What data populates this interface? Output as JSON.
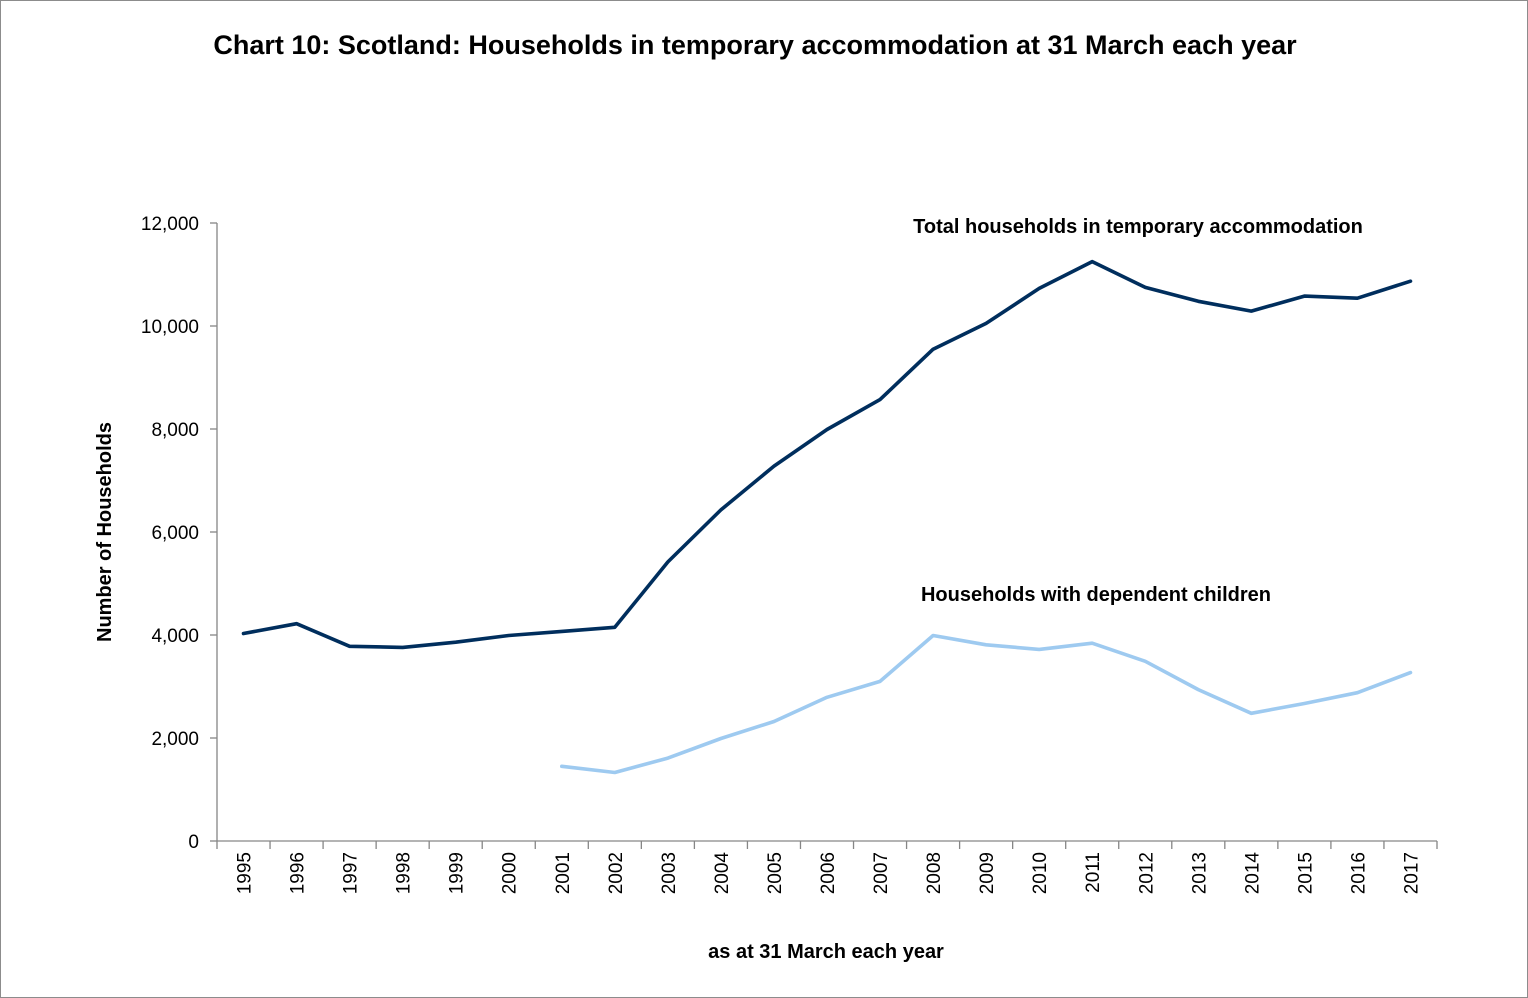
{
  "chart_data": {
    "type": "line",
    "title": "Chart 10: Scotland: Households in temporary accommodation at 31 March each year",
    "xlabel": "as at 31 March each year",
    "ylabel": "Number of Households",
    "ylim": [
      0,
      12000
    ],
    "yticks": [
      "0",
      "2,000",
      "4,000",
      "6,000",
      "8,000",
      "10,000",
      "12,000"
    ],
    "grid": false,
    "categories": [
      "1995",
      "1996",
      "1997",
      "1998",
      "1999",
      "2000",
      "2001",
      "2002",
      "2003",
      "2004",
      "2005",
      "2006",
      "2007",
      "2008",
      "2009",
      "2010",
      "2011",
      "2012",
      "2013",
      "2014",
      "2015",
      "2016",
      "2017"
    ],
    "series": [
      {
        "name": "Total households in temporary accommodation",
        "color": "#002e5d",
        "values": [
          4030,
          4220,
          3780,
          3760,
          3860,
          3990,
          4070,
          4150,
          5420,
          6430,
          7280,
          7990,
          8570,
          9550,
          10050,
          10730,
          11250,
          10750,
          10480,
          10290,
          10580,
          10540,
          10870
        ]
      },
      {
        "name": "Households with dependent children",
        "color": "#9ecaf0",
        "values": [
          null,
          null,
          null,
          null,
          null,
          null,
          1450,
          1330,
          1610,
          1990,
          2320,
          2790,
          3100,
          3990,
          3810,
          3720,
          3840,
          3490,
          2940,
          2480,
          2670,
          2880,
          3270
        ]
      }
    ]
  }
}
